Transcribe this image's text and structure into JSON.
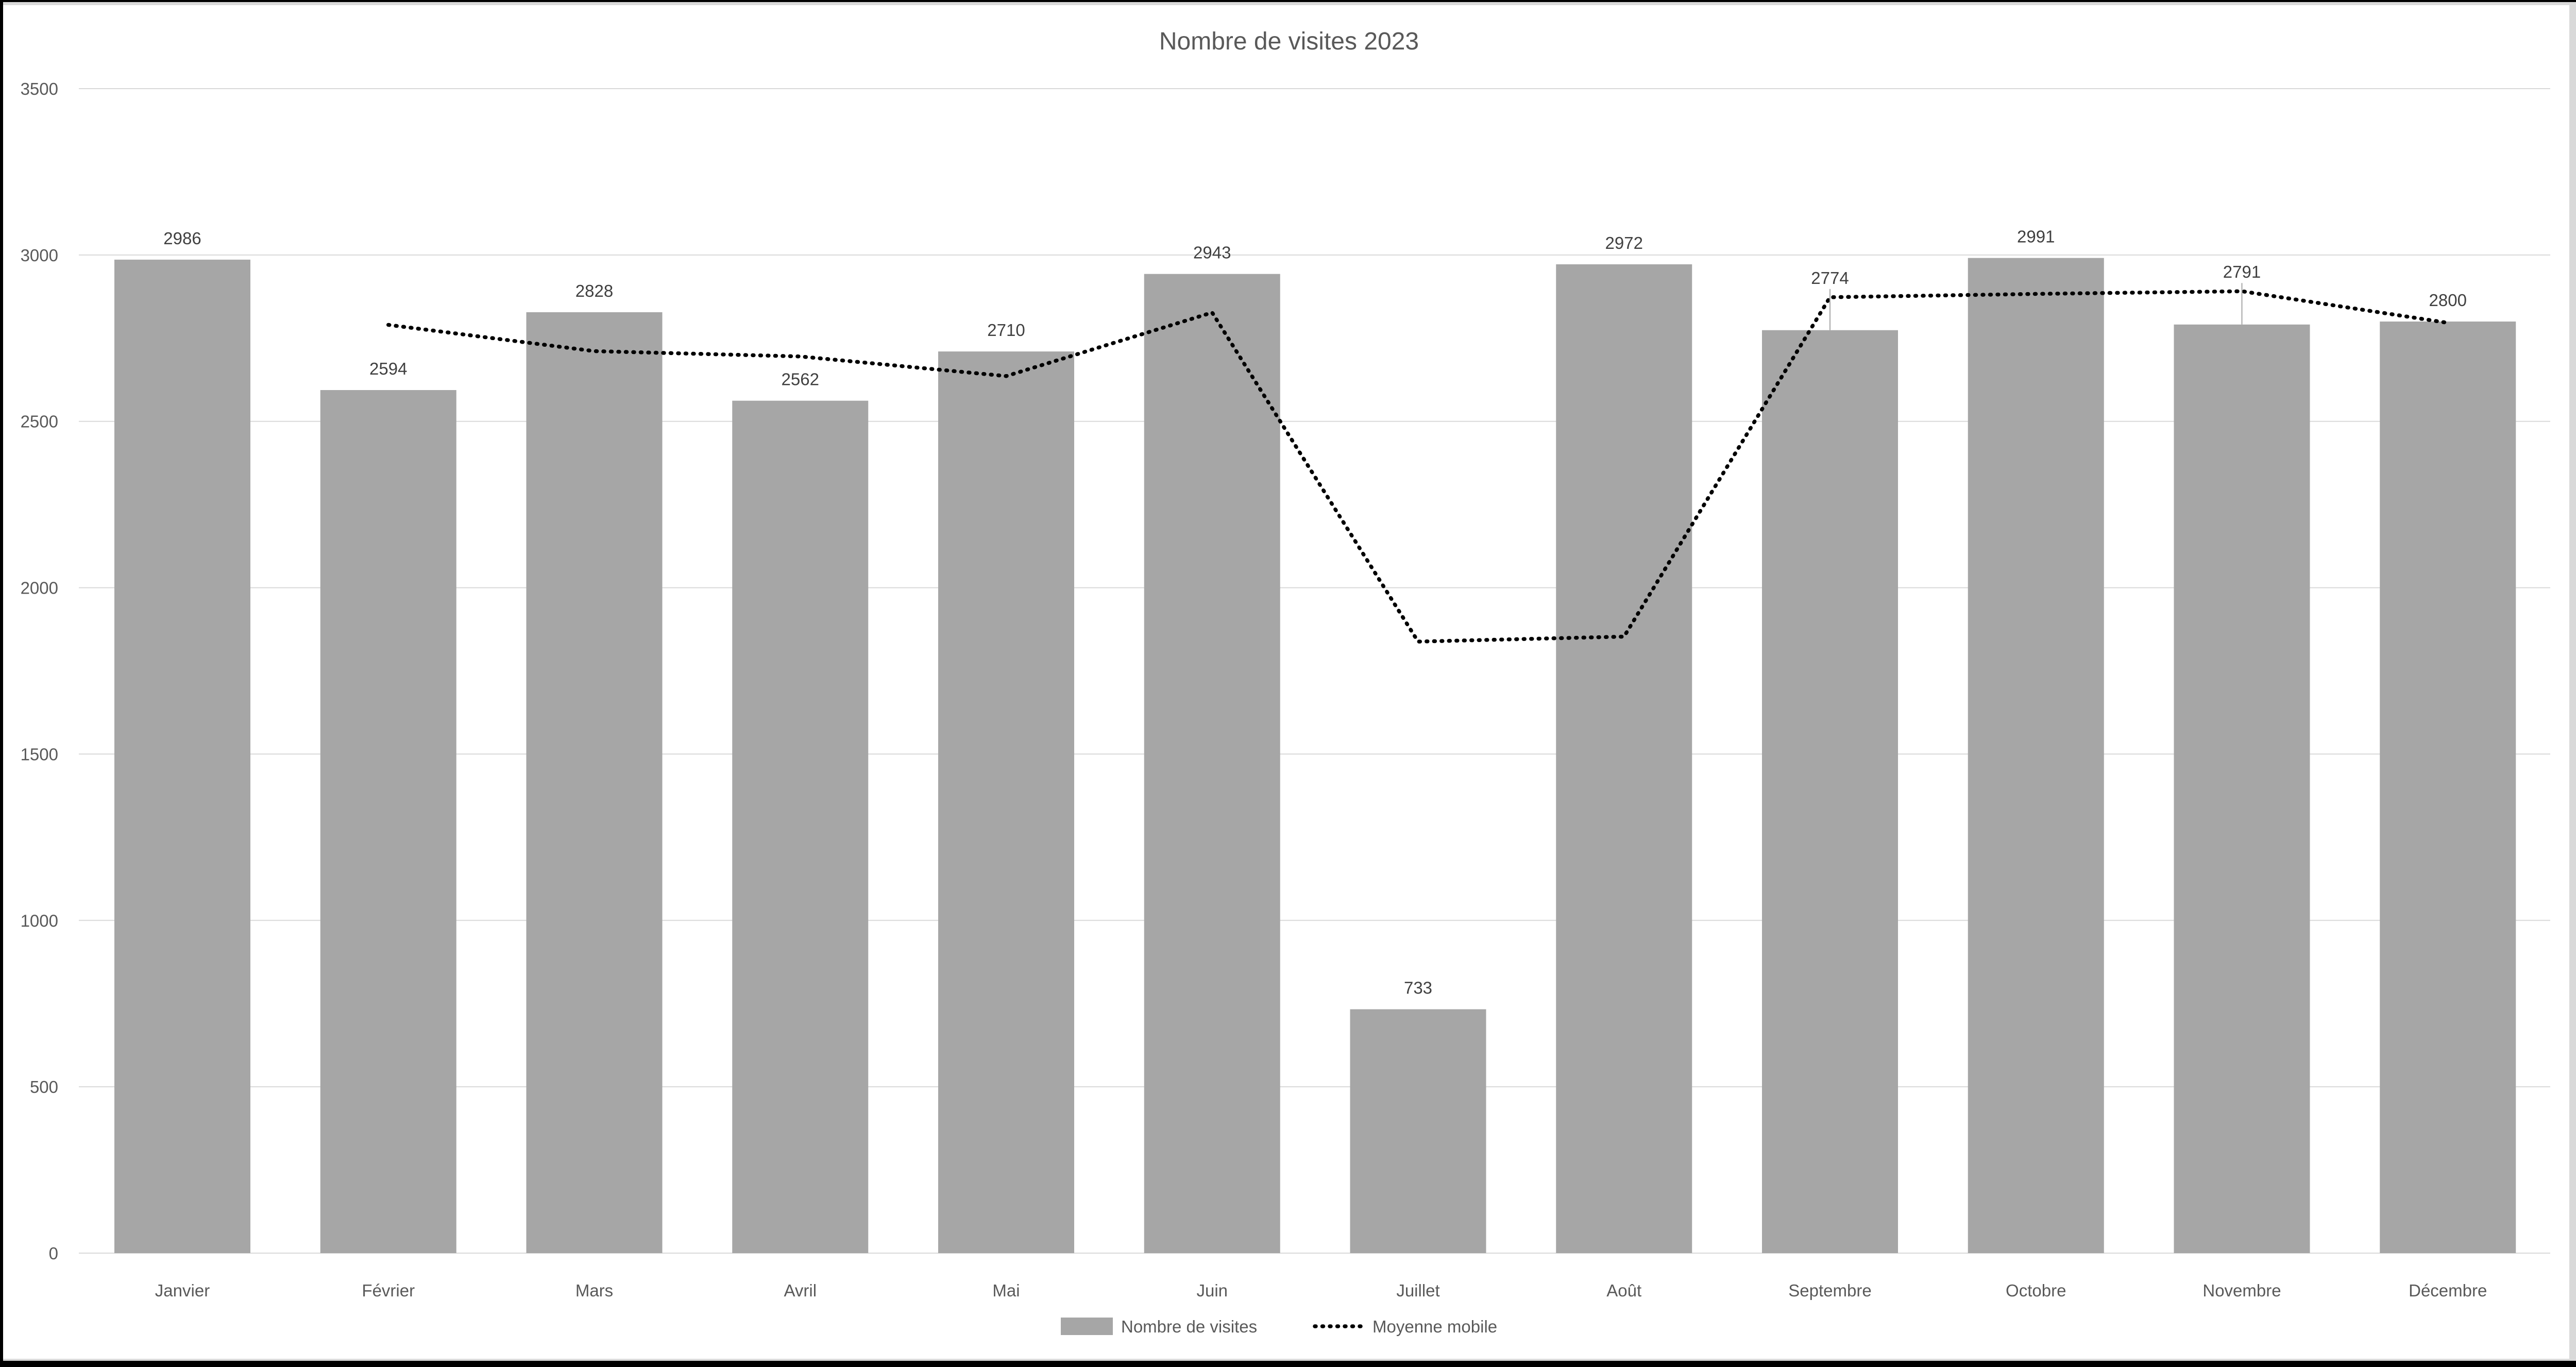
{
  "chart_data": {
    "type": "bar",
    "title": "Nombre de visites 2023",
    "categories": [
      "Janvier",
      "Février",
      "Mars",
      "Avril",
      "Mai",
      "Juin",
      "Juillet",
      "Août",
      "Septembre",
      "Octobre",
      "Novembre",
      "Décembre"
    ],
    "series": [
      {
        "name": "Nombre de visites",
        "type": "bar",
        "values": [
          2986,
          2594,
          2828,
          2562,
          2710,
          2943,
          733,
          2972,
          2774,
          2991,
          2791,
          2800
        ]
      },
      {
        "name": "Moyenne mobile",
        "type": "dotted-line",
        "values": [
          null,
          2790,
          2711,
          2695,
          2636,
          2827,
          1838,
          1853,
          2873,
          2883,
          2891,
          2796
        ]
      }
    ],
    "ylim": [
      0,
      3500
    ],
    "yticks": [
      0,
      500,
      1000,
      1500,
      2000,
      2500,
      3000,
      3500
    ],
    "grid": "horizontal",
    "data_labels": true,
    "lifted_labels": [
      "Septembre",
      "Novembre"
    ],
    "legend_position": "bottom"
  },
  "legend": {
    "items": [
      {
        "label": "Nombre de visites",
        "marker": "bar-swatch"
      },
      {
        "label": "Moyenne mobile",
        "marker": "dotted-line"
      }
    ]
  },
  "colors": {
    "background": "#ffffff",
    "canvas": "#d9d9d9",
    "frame": "#000000",
    "bar": "#a6a6a6",
    "grid": "#d9d9d9",
    "axis_text": "#595959",
    "value_text": "#404040",
    "line": "#000000",
    "leader": "#a6a6a6",
    "title_text": "#595959"
  }
}
